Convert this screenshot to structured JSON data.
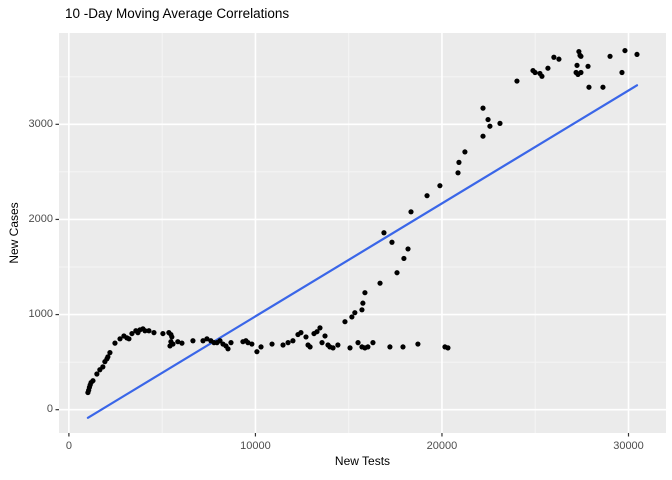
{
  "chart_data": {
    "type": "scatter",
    "title": "10 -Day Moving Average Correlations",
    "xlabel": "New Tests",
    "ylabel": "New Cases",
    "legend": "none",
    "grid": true,
    "xlim": [
      -530,
      32010
    ],
    "ylim": [
      -245,
      3960
    ],
    "x_ticks": [
      0,
      10000,
      20000,
      30000
    ],
    "y_ticks": [
      0,
      1000,
      2000,
      3000
    ],
    "x_minor_ticks": [
      5000,
      15000,
      25000
    ],
    "y_minor_ticks": [
      500,
      1500,
      2500,
      3500
    ],
    "colors": {
      "panel_bg": "#EBEBEB",
      "grid_major": "#FFFFFF",
      "grid_minor": "#F5F5F5",
      "point": "#000000",
      "smooth_line": "#3A66E8",
      "tick_mark": "#333333",
      "tick_label": "#4D4D4D",
      "axis_title": "#000000",
      "title": "#000000"
    },
    "smooth_line": {
      "x1": 1020,
      "y1": -85,
      "x2": 30455,
      "y2": 3410
    },
    "points": [
      [
        1020,
        180
      ],
      [
        1060,
        205
      ],
      [
        1100,
        235
      ],
      [
        1140,
        260
      ],
      [
        1190,
        285
      ],
      [
        1290,
        305
      ],
      [
        1500,
        375
      ],
      [
        1660,
        420
      ],
      [
        1820,
        450
      ],
      [
        1930,
        505
      ],
      [
        2040,
        535
      ],
      [
        2090,
        555
      ],
      [
        2200,
        600
      ],
      [
        2470,
        700
      ],
      [
        2740,
        745
      ],
      [
        2950,
        775
      ],
      [
        3110,
        755
      ],
      [
        3220,
        745
      ],
      [
        3380,
        800
      ],
      [
        3590,
        830
      ],
      [
        3700,
        810
      ],
      [
        3810,
        840
      ],
      [
        3970,
        850
      ],
      [
        4080,
        830
      ],
      [
        4290,
        830
      ],
      [
        4560,
        810
      ],
      [
        5040,
        800
      ],
      [
        5360,
        810
      ],
      [
        5470,
        790
      ],
      [
        5520,
        765
      ],
      [
        5470,
        715
      ],
      [
        5580,
        690
      ],
      [
        5420,
        670
      ],
      [
        5840,
        715
      ],
      [
        6060,
        700
      ],
      [
        6650,
        725
      ],
      [
        7190,
        725
      ],
      [
        7400,
        745
      ],
      [
        7610,
        725
      ],
      [
        7780,
        705
      ],
      [
        7940,
        705
      ],
      [
        8100,
        725
      ],
      [
        8260,
        690
      ],
      [
        8420,
        670
      ],
      [
        8530,
        640
      ],
      [
        8690,
        705
      ],
      [
        9330,
        715
      ],
      [
        9490,
        725
      ],
      [
        9600,
        705
      ],
      [
        9810,
        690
      ],
      [
        10080,
        610
      ],
      [
        10300,
        660
      ],
      [
        10890,
        690
      ],
      [
        11480,
        680
      ],
      [
        11750,
        705
      ],
      [
        12010,
        725
      ],
      [
        12280,
        790
      ],
      [
        12440,
        810
      ],
      [
        12710,
        765
      ],
      [
        12820,
        680
      ],
      [
        12930,
        660
      ],
      [
        13140,
        800
      ],
      [
        13300,
        820
      ],
      [
        13460,
        860
      ],
      [
        13570,
        705
      ],
      [
        13730,
        775
      ],
      [
        13890,
        680
      ],
      [
        13990,
        660
      ],
      [
        14160,
        650
      ],
      [
        14420,
        680
      ],
      [
        15070,
        650
      ],
      [
        15500,
        705
      ],
      [
        15710,
        660
      ],
      [
        15870,
        650
      ],
      [
        16030,
        660
      ],
      [
        16300,
        705
      ],
      [
        17210,
        660
      ],
      [
        17910,
        660
      ],
      [
        18710,
        690
      ],
      [
        20160,
        660
      ],
      [
        20320,
        650
      ],
      [
        14800,
        925
      ],
      [
        15170,
        975
      ],
      [
        15330,
        1020
      ],
      [
        15710,
        1050
      ],
      [
        15760,
        1120
      ],
      [
        15870,
        1230
      ],
      [
        16680,
        1330
      ],
      [
        16890,
        1860
      ],
      [
        17320,
        1760
      ],
      [
        17590,
        1440
      ],
      [
        17960,
        1590
      ],
      [
        18180,
        1690
      ],
      [
        18340,
        2080
      ],
      [
        19200,
        2250
      ],
      [
        19890,
        2355
      ],
      [
        20860,
        2490
      ],
      [
        20910,
        2600
      ],
      [
        21230,
        2710
      ],
      [
        22200,
        2875
      ],
      [
        22200,
        3170
      ],
      [
        22470,
        3050
      ],
      [
        22570,
        2980
      ],
      [
        23110,
        3010
      ],
      [
        24020,
        3455
      ],
      [
        24880,
        3565
      ],
      [
        24990,
        3545
      ],
      [
        25250,
        3535
      ],
      [
        25360,
        3505
      ],
      [
        25680,
        3590
      ],
      [
        26000,
        3705
      ],
      [
        26270,
        3685
      ],
      [
        27190,
        3545
      ],
      [
        27290,
        3525
      ],
      [
        27450,
        3545
      ],
      [
        27240,
        3620
      ],
      [
        27400,
        3725
      ],
      [
        27340,
        3765
      ],
      [
        27450,
        3715
      ],
      [
        27830,
        3610
      ],
      [
        27880,
        3390
      ],
      [
        28630,
        3390
      ],
      [
        29010,
        3715
      ],
      [
        29650,
        3545
      ],
      [
        29810,
        3775
      ],
      [
        30455,
        3735
      ]
    ]
  }
}
